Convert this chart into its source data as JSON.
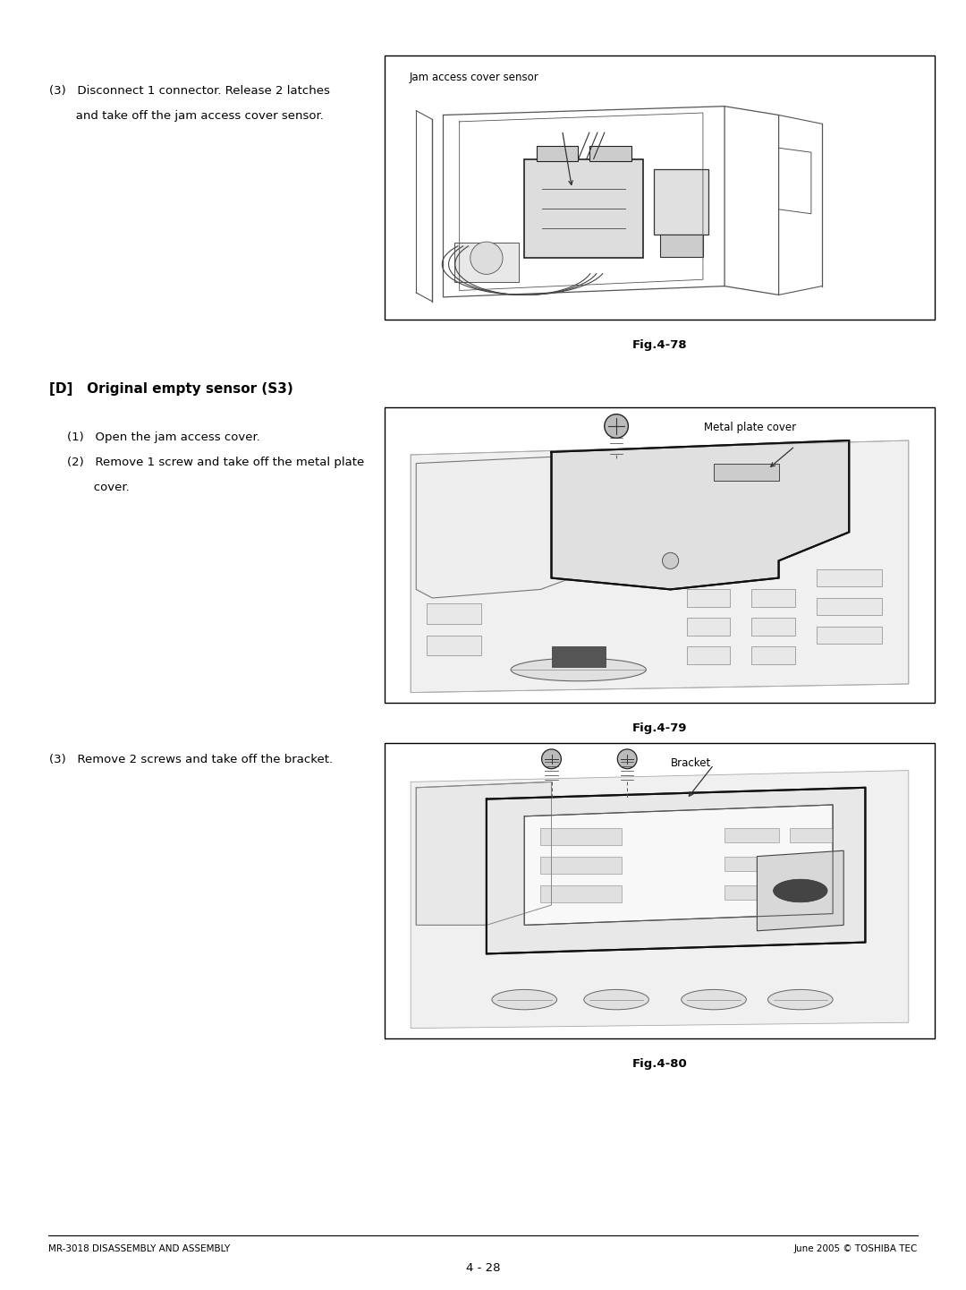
{
  "page_bg": "#ffffff",
  "fig_width": 10.8,
  "fig_height": 14.41,
  "dpi": 100,
  "text_color": "#000000",
  "box_edge_color": "#000000",
  "box_fill": "#ffffff",
  "line_color": "#555555",
  "font_family": "DejaVu Sans",
  "body_fontsize": 9.5,
  "label_fontsize": 8.5,
  "fig_label_fontsize": 9.5,
  "header_fontsize": 11.0,
  "footer_fontsize": 7.5,
  "page_num_fontsize": 9.5,
  "sec3_line1": "(3)   Disconnect 1 connector. Release 2 latches",
  "sec3_line2": "       and take off the jam access cover sensor.",
  "fig78_caption": "Fig.4-78",
  "fig78_label": "Jam access cover sensor",
  "secD_header": "[D]   Original empty sensor (S3)",
  "secD1": "(1)   Open the jam access cover.",
  "secD2_line1": "(2)   Remove 1 screw and take off the metal plate",
  "secD2_line2": "       cover.",
  "fig79_caption": "Fig.4-79",
  "fig79_label": "Metal plate cover",
  "sec3b": "(3)   Remove 2 screws and take off the bracket.",
  "fig80_caption": "Fig.4-80",
  "fig80_label": "Bracket",
  "footer_left": "MR-3018 DISASSEMBLY AND ASSEMBLY",
  "footer_right": "June 2005 © TOSHIBA TEC",
  "footer_center": "4 - 28"
}
